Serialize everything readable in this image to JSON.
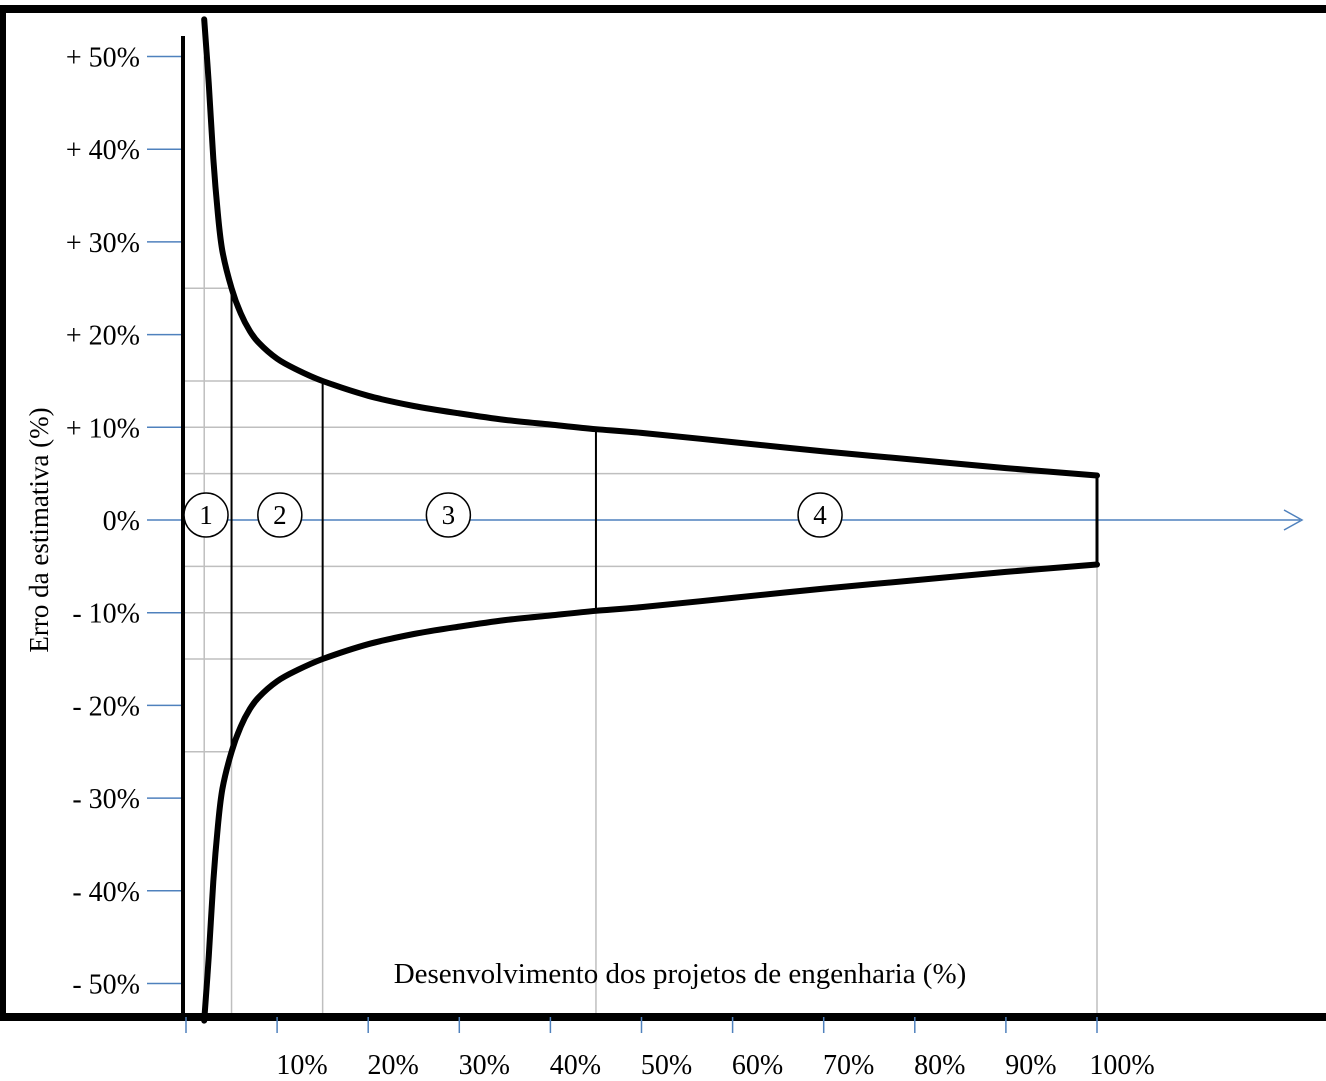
{
  "chart_data": {
    "type": "line",
    "xlabel": "Desenvolvimento dos projetos de engenharia (%)",
    "ylabel": "Erro da estimativa (%)",
    "xlim": [
      0,
      100
    ],
    "ylim": [
      -50,
      50
    ],
    "y_ticks": [
      {
        "value": 50,
        "label": "+ 50%"
      },
      {
        "value": 40,
        "label": "+ 40%"
      },
      {
        "value": 30,
        "label": "+ 30%"
      },
      {
        "value": 20,
        "label": "+ 20%"
      },
      {
        "value": 10,
        "label": "+ 10%"
      },
      {
        "value": 0,
        "label": "0%"
      },
      {
        "value": -10,
        "label": "- 10%"
      },
      {
        "value": -20,
        "label": "- 20%"
      },
      {
        "value": -30,
        "label": "- 30%"
      },
      {
        "value": -40,
        "label": "- 40%"
      },
      {
        "value": -50,
        "label": "- 50%"
      }
    ],
    "x_ticks": [
      {
        "value": 0,
        "label": ""
      },
      {
        "value": 10,
        "label": "10%"
      },
      {
        "value": 20,
        "label": "20%"
      },
      {
        "value": 30,
        "label": "30%"
      },
      {
        "value": 40,
        "label": "40%"
      },
      {
        "value": 50,
        "label": "50%"
      },
      {
        "value": 60,
        "label": "60%"
      },
      {
        "value": 70,
        "label": "70%"
      },
      {
        "value": 80,
        "label": "80%"
      },
      {
        "value": 90,
        "label": "90%"
      },
      {
        "value": 100,
        "label": "100%"
      }
    ],
    "series": [
      {
        "x": [
          2,
          2.5,
          3,
          3.5,
          4,
          5,
          6,
          7,
          8,
          10,
          12,
          15,
          20,
          25,
          30,
          35,
          40,
          45,
          50,
          60,
          70,
          80,
          90,
          100
        ],
        "values": [
          54,
          47,
          39,
          33,
          29,
          25,
          22.3,
          20.4,
          19.1,
          17.4,
          16.3,
          15,
          13.4,
          12.3,
          11.5,
          10.8,
          10.3,
          9.8,
          9.4,
          8.4,
          7.4,
          6.5,
          5.6,
          4.8
        ]
      },
      {
        "x": [
          2,
          2.5,
          3,
          3.5,
          4,
          5,
          6,
          7,
          8,
          10,
          12,
          15,
          20,
          25,
          30,
          35,
          40,
          45,
          50,
          60,
          70,
          80,
          90,
          100
        ],
        "values": [
          -54,
          -47,
          -39,
          -33,
          -29,
          -25,
          -22.3,
          -20.4,
          -19.1,
          -17.4,
          -16.3,
          -15,
          -13.4,
          -12.3,
          -11.5,
          -10.8,
          -10.3,
          -9.8,
          -9.4,
          -8.4,
          -7.4,
          -6.5,
          -5.6,
          -4.8
        ]
      }
    ],
    "phase_boundaries": [
      5,
      15,
      45,
      100
    ],
    "phase_levels": [
      25,
      15,
      10,
      5
    ],
    "phases": [
      {
        "label": "1",
        "x": 2.2
      },
      {
        "label": "2",
        "x": 10.3
      },
      {
        "label": "3",
        "x": 28.8
      },
      {
        "label": "4",
        "x": 69.6
      }
    ],
    "grid": "partial",
    "colors": {
      "axis": "#000000",
      "ticks": "#4f81bd",
      "zero_line": "#4f81bd",
      "guides": "#bfbfbf",
      "curve": "#000000"
    }
  }
}
